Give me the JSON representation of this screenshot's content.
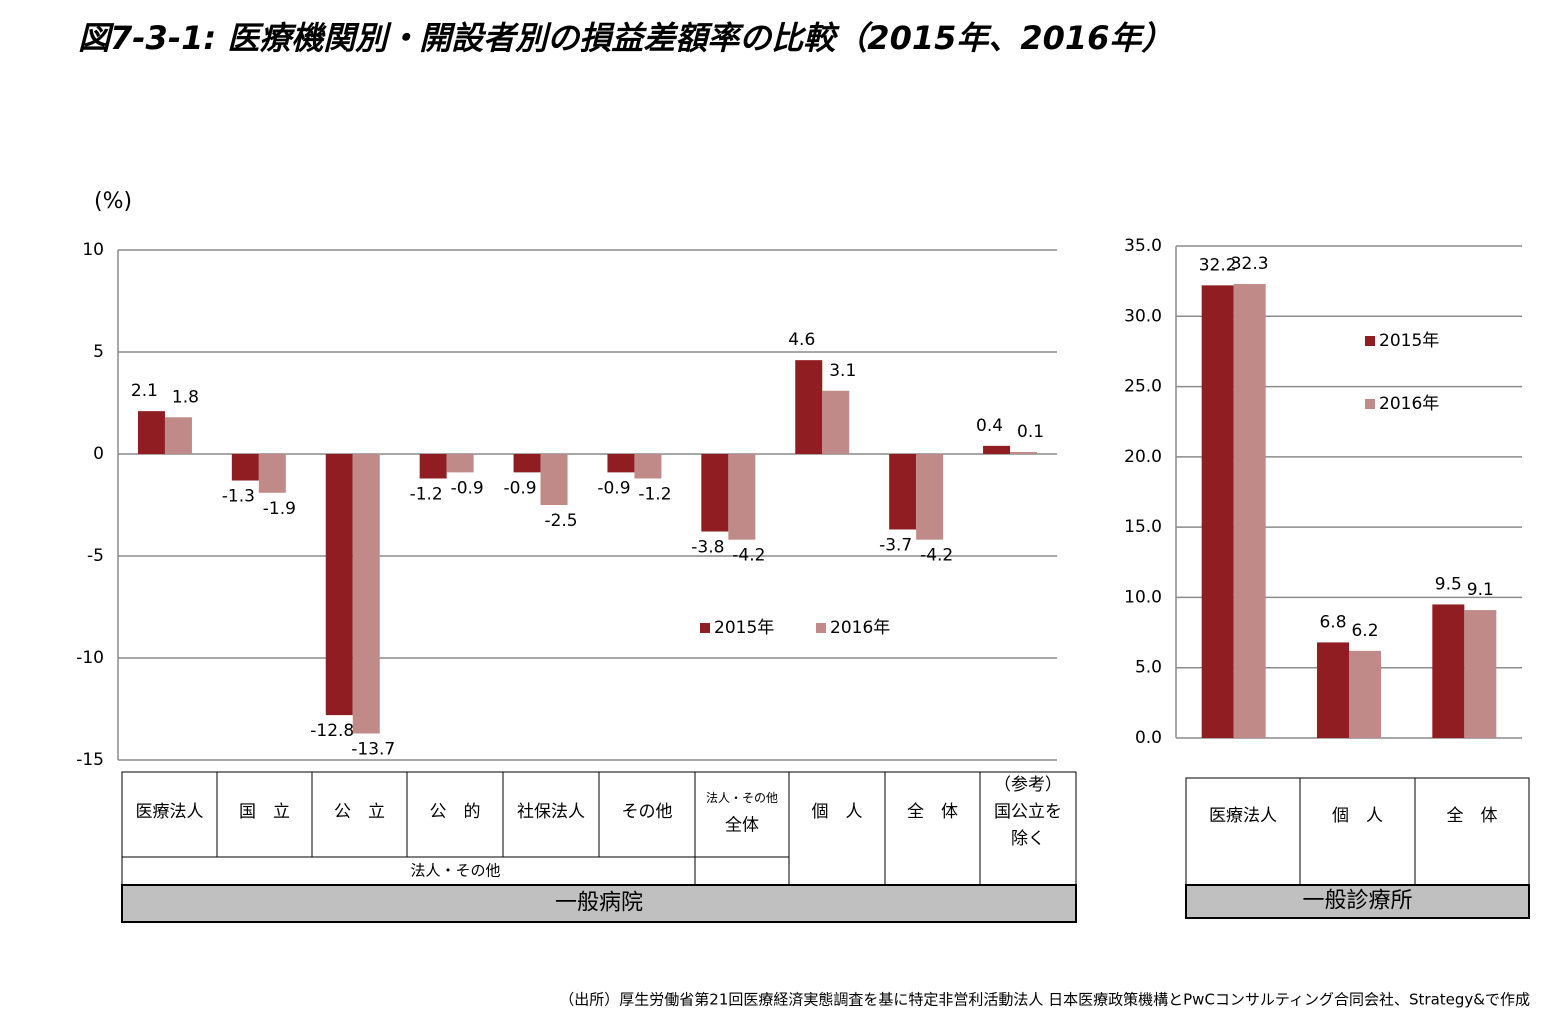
{
  "title": "図7-3-1: 医療機関別・開設者別の損益差額率の比較（2015年、2016年）",
  "source": "（出所）厚生労働省第21回医療経済実態調査を基に特定非営利活動法人 日本医療政策機構とPwCコンサルティング合同会社、Strategy&で作成",
  "chart_data": [
    {
      "type": "bar",
      "y_label": "(%)",
      "group": "一般病院",
      "group_labels": [
        "法人・その他"
      ],
      "categories": [
        [
          "医療法人"
        ],
        [
          "国　立"
        ],
        [
          "公　立"
        ],
        [
          "公　的"
        ],
        [
          "社保法人"
        ],
        [
          "その他"
        ],
        [
          "法人・その他",
          "全体"
        ],
        [
          "個　人"
        ],
        [
          "全　体"
        ],
        [
          "（参考）",
          "国公立を",
          "除く"
        ]
      ],
      "series": [
        {
          "name": "2015年",
          "color": "#8f1d21",
          "values": [
            2.1,
            -1.3,
            -12.8,
            -1.2,
            -0.9,
            -0.9,
            -3.8,
            4.6,
            -3.7,
            0.4
          ]
        },
        {
          "name": "2016年",
          "color": "#c08a88",
          "values": [
            1.8,
            -1.9,
            -13.7,
            -0.9,
            -2.5,
            -1.2,
            -4.2,
            3.1,
            -4.2,
            0.1
          ]
        }
      ],
      "ylim": [
        -15,
        10
      ],
      "yticks": [
        -15,
        -10,
        -5,
        0,
        5,
        10
      ],
      "grid": true,
      "legend": "center-right"
    },
    {
      "type": "bar",
      "group": "一般診療所",
      "categories": [
        [
          "医療法人"
        ],
        [
          "個　人"
        ],
        [
          "全　体"
        ]
      ],
      "series": [
        {
          "name": "2015年",
          "color": "#8f1d21",
          "values": [
            32.2,
            6.8,
            9.5
          ]
        },
        {
          "name": "2016年",
          "color": "#c08a88",
          "values": [
            32.3,
            6.2,
            9.1
          ]
        }
      ],
      "ylim": [
        0,
        35
      ],
      "yticks": [
        {
          "value": 0,
          "label": "0.0"
        },
        {
          "value": 5,
          "label": "5.0"
        },
        {
          "value": 10,
          "label": "10.0"
        },
        {
          "value": 15,
          "label": "15.0"
        },
        {
          "value": 20,
          "label": "20.0"
        },
        {
          "value": 25,
          "label": "25.0"
        },
        {
          "value": 30,
          "label": "30.0"
        },
        {
          "value": 35,
          "label": "35.0"
        }
      ],
      "grid": true,
      "legend": "upper-right"
    }
  ]
}
